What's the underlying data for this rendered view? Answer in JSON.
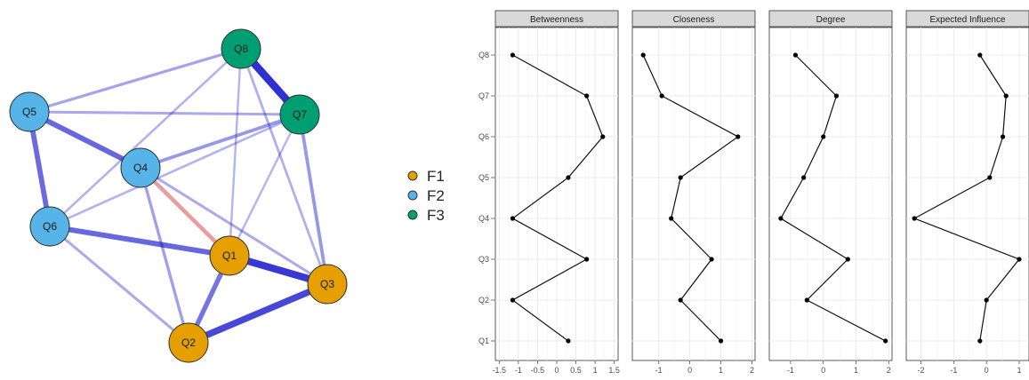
{
  "network": {
    "nodes": [
      {
        "id": "Q1",
        "label": "Q1",
        "group": "F1"
      },
      {
        "id": "Q2",
        "label": "Q2",
        "group": "F1"
      },
      {
        "id": "Q3",
        "label": "Q3",
        "group": "F1"
      },
      {
        "id": "Q4",
        "label": "Q4",
        "group": "F2"
      },
      {
        "id": "Q5",
        "label": "Q5",
        "group": "F2"
      },
      {
        "id": "Q6",
        "label": "Q6",
        "group": "F2"
      },
      {
        "id": "Q7",
        "label": "Q7",
        "group": "F3"
      },
      {
        "id": "Q8",
        "label": "Q8",
        "group": "F3"
      }
    ],
    "edges": [
      {
        "from": "Q8",
        "to": "Q7",
        "sign": "positive",
        "strength": 0.95
      },
      {
        "from": "Q1",
        "to": "Q3",
        "sign": "positive",
        "strength": 0.9
      },
      {
        "from": "Q2",
        "to": "Q3",
        "sign": "positive",
        "strength": 0.8
      },
      {
        "from": "Q5",
        "to": "Q6",
        "sign": "positive",
        "strength": 0.6
      },
      {
        "from": "Q5",
        "to": "Q4",
        "sign": "positive",
        "strength": 0.62
      },
      {
        "from": "Q6",
        "to": "Q1",
        "sign": "positive",
        "strength": 0.62
      },
      {
        "from": "Q1",
        "to": "Q2",
        "sign": "positive",
        "strength": 0.55
      },
      {
        "from": "Q4",
        "to": "Q1",
        "sign": "negative",
        "strength": 0.45
      },
      {
        "from": "Q4",
        "to": "Q7",
        "sign": "positive",
        "strength": 0.35
      },
      {
        "from": "Q5",
        "to": "Q7",
        "sign": "positive",
        "strength": 0.25
      },
      {
        "from": "Q5",
        "to": "Q8",
        "sign": "positive",
        "strength": 0.28
      },
      {
        "from": "Q7",
        "to": "Q3",
        "sign": "positive",
        "strength": 0.35
      },
      {
        "from": "Q4",
        "to": "Q2",
        "sign": "positive",
        "strength": 0.3
      },
      {
        "from": "Q6",
        "to": "Q2",
        "sign": "positive",
        "strength": 0.25
      },
      {
        "from": "Q8",
        "to": "Q3",
        "sign": "positive",
        "strength": 0.22
      },
      {
        "from": "Q8",
        "to": "Q1",
        "sign": "positive",
        "strength": 0.18
      },
      {
        "from": "Q6",
        "to": "Q8",
        "sign": "positive",
        "strength": 0.2
      },
      {
        "from": "Q4",
        "to": "Q3",
        "sign": "positive",
        "strength": 0.25
      },
      {
        "from": "Q6",
        "to": "Q7",
        "sign": "positive",
        "strength": 0.2
      },
      {
        "from": "Q7",
        "to": "Q1",
        "sign": "positive",
        "strength": 0.18
      }
    ]
  },
  "legend": {
    "items": [
      {
        "label": "F1",
        "color": "#E69F00"
      },
      {
        "label": "F2",
        "color": "#56B4E9"
      },
      {
        "label": "F3",
        "color": "#009E73"
      }
    ]
  },
  "colors": {
    "positive_edge": "#1515cc",
    "negative_edge": "#d04545",
    "node_border": "#333333",
    "strip_fill": "#d9d9d9",
    "grid": "#ebebeb"
  },
  "chart_data": {
    "type": "line",
    "categories": [
      "Q1",
      "Q2",
      "Q3",
      "Q4",
      "Q5",
      "Q6",
      "Q7",
      "Q8"
    ],
    "panels": [
      {
        "title": "Betweenness",
        "xlim": [
          -1.6,
          1.6
        ],
        "ticks": [
          -1.5,
          -1,
          -0.5,
          0,
          0.5,
          1,
          1.5
        ],
        "tick_labels": [
          "-1.5",
          "-1",
          "-0.5",
          "0",
          "0.5",
          "1",
          "1.5"
        ],
        "values": [
          0.3,
          -1.15,
          0.78,
          -1.15,
          0.3,
          1.2,
          0.78,
          -1.15
        ]
      },
      {
        "title": "Closeness",
        "xlim": [
          -1.85,
          2.1
        ],
        "ticks": [
          -1,
          0,
          1,
          2
        ],
        "tick_labels": [
          "-1",
          "0",
          "1",
          "2"
        ],
        "values": [
          1.0,
          -0.3,
          0.7,
          -0.6,
          -0.3,
          1.55,
          -0.9,
          -1.5
        ]
      },
      {
        "title": "Degree",
        "xlim": [
          -1.65,
          2.1
        ],
        "ticks": [
          -1,
          0,
          1,
          2
        ],
        "tick_labels": [
          "-1",
          "0",
          "1",
          "2"
        ],
        "values": [
          1.9,
          -0.5,
          0.75,
          -1.3,
          -0.6,
          0.0,
          0.4,
          -0.85
        ]
      },
      {
        "title": "Expected Influence",
        "xlim": [
          -2.45,
          1.3
        ],
        "ticks": [
          -2,
          -1,
          0,
          1
        ],
        "tick_labels": [
          "-2",
          "-1",
          "0",
          "1"
        ],
        "values": [
          -0.2,
          0.0,
          1.0,
          -2.2,
          0.1,
          0.5,
          0.6,
          -0.2
        ]
      }
    ]
  }
}
